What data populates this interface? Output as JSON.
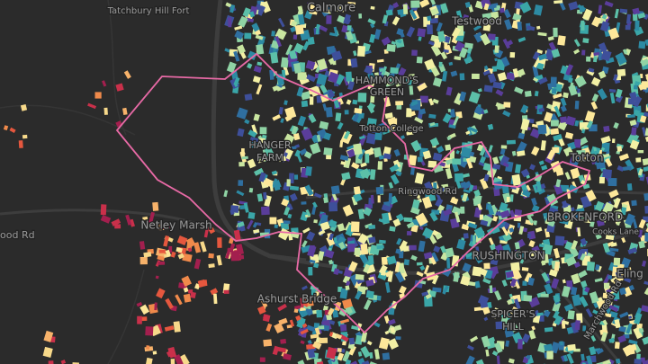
{
  "labels": [
    {
      "text": "Tatchbury Hill Fort"
    },
    {
      "text": "Calmore"
    },
    {
      "text": "Testwood"
    },
    {
      "text": "HAMMOND'S"
    },
    {
      "text": "GREEN"
    },
    {
      "text": "Totton College"
    },
    {
      "text": "HANGER"
    },
    {
      "text": "FARM"
    },
    {
      "text": "Totton"
    },
    {
      "text": "Ringwood Rd"
    },
    {
      "text": "ood Rd"
    },
    {
      "text": "Netley Marsh"
    },
    {
      "text": "BROKENFORD"
    },
    {
      "text": "Cooks Lane"
    },
    {
      "text": "RUSHINGTON"
    },
    {
      "text": "Ashurst Bridge"
    },
    {
      "text": "SPICER'S"
    },
    {
      "text": "HILL"
    },
    {
      "text": "Marchwood Rd"
    },
    {
      "text": "Eling"
    }
  ]
}
